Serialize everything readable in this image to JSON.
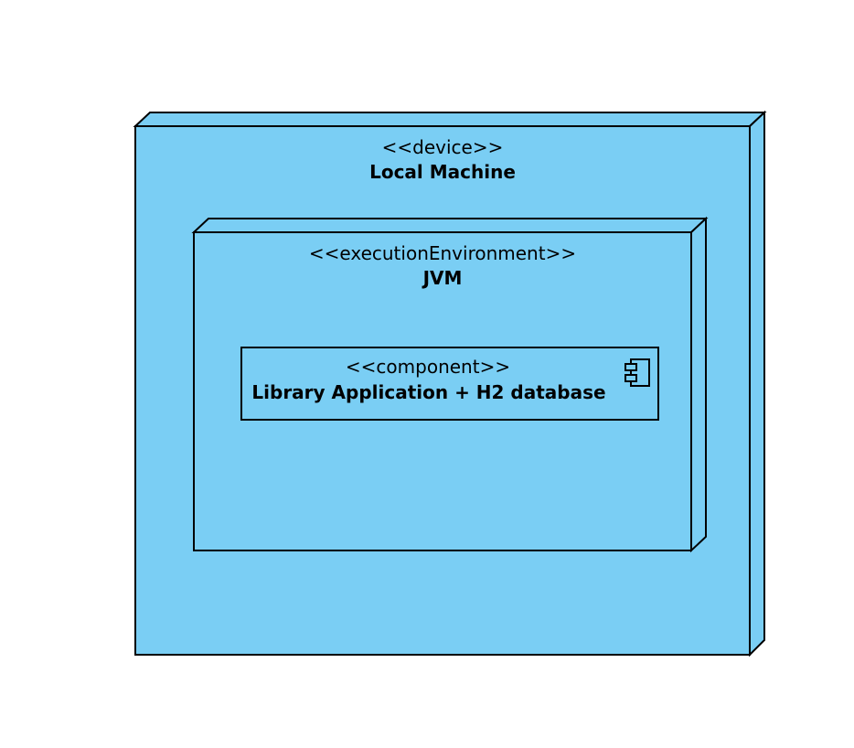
{
  "diagram": {
    "type": "uml-deployment",
    "colors": {
      "node_fill": "#7ACEF4",
      "stroke": "#000000",
      "background": "#FFFFFF"
    },
    "device": {
      "stereotype": "<<device>>",
      "name": "Local Machine"
    },
    "environment": {
      "stereotype": "<<executionEnvironment>>",
      "name": "JVM"
    },
    "component": {
      "stereotype": "<<component>>",
      "name": "Library Application + H2 database",
      "icon": "uml-component-icon"
    }
  }
}
